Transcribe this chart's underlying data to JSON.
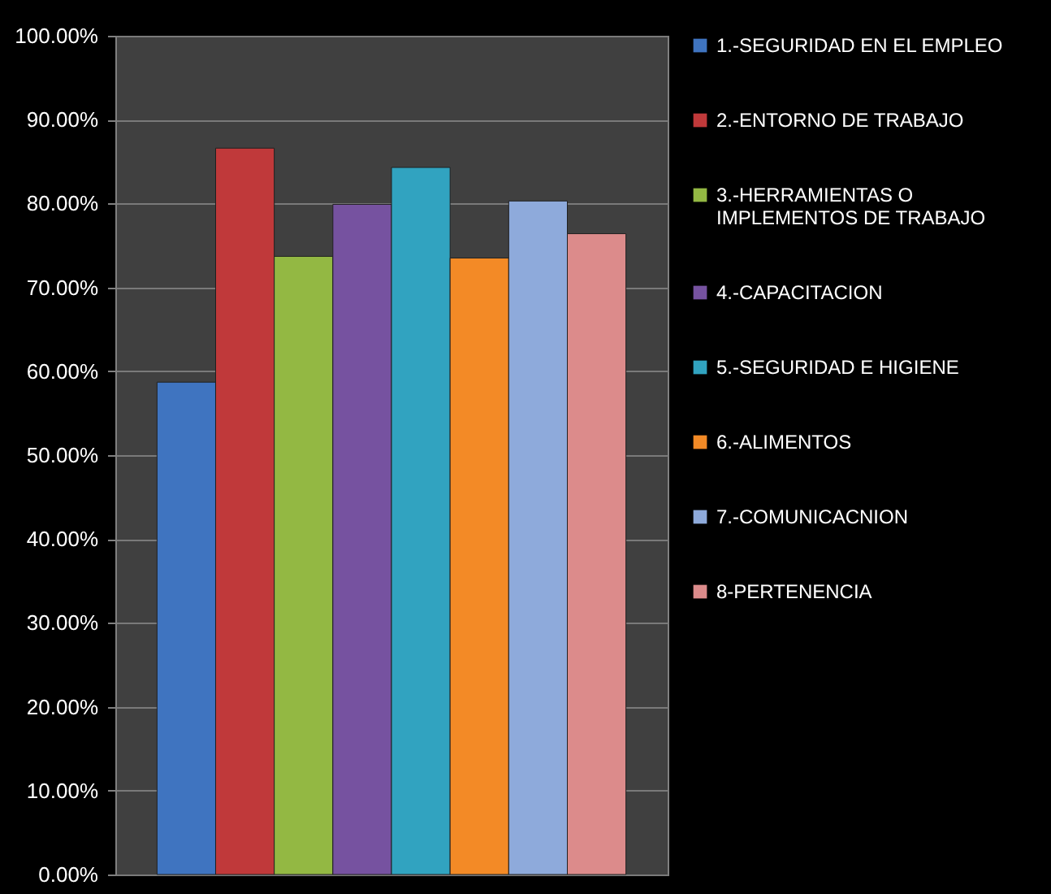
{
  "chart_data": {
    "type": "bar",
    "categories": [
      null
    ],
    "series": [
      {
        "name": "1.-SEGURIDAD EN EL EMPLEO",
        "color": "#3f74c0",
        "values": [
          58.7
        ]
      },
      {
        "name": "2.-ENTORNO DE TRABAJO",
        "color": "#c0393a",
        "values": [
          86.6
        ]
      },
      {
        "name": "3.-HERRAMIENTAS O IMPLEMENTOS DE TRABAJO",
        "color": "#93b843",
        "values": [
          73.7
        ]
      },
      {
        "name": "4.-CAPACITACION",
        "color": "#7652a0",
        "values": [
          79.9
        ]
      },
      {
        "name": "5.-SEGURIDAD E HIGIENE",
        "color": "#31a3c0",
        "values": [
          84.3
        ]
      },
      {
        "name": "6.-ALIMENTOS",
        "color": "#f38a26",
        "values": [
          73.5
        ]
      },
      {
        "name": "7.-COMUNICACNION",
        "color": "#8eaadb",
        "values": [
          80.3
        ]
      },
      {
        "name": "8-PERTENENCIA",
        "color": "#dc8b8b",
        "values": [
          76.4
        ]
      }
    ],
    "ylim": [
      0,
      100
    ],
    "yticks": [
      {
        "value": 0,
        "label": "0.00%"
      },
      {
        "value": 10,
        "label": "10.00%"
      },
      {
        "value": 20,
        "label": "20.00%"
      },
      {
        "value": 30,
        "label": "30.00%"
      },
      {
        "value": 40,
        "label": "40.00%"
      },
      {
        "value": 50,
        "label": "50.00%"
      },
      {
        "value": 60,
        "label": "60.00%"
      },
      {
        "value": 70,
        "label": "70.00%"
      },
      {
        "value": 80,
        "label": "80.00%"
      },
      {
        "value": 90,
        "label": "90.00%"
      },
      {
        "value": 100,
        "label": "100.00%"
      }
    ],
    "grid": "y",
    "legend": "right"
  }
}
